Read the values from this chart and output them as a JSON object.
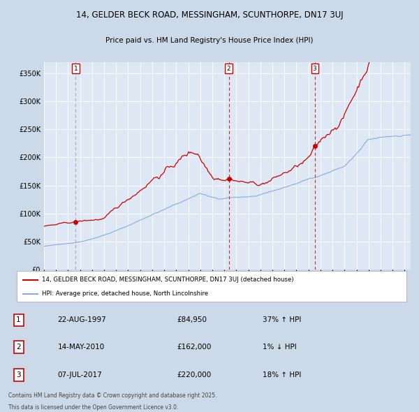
{
  "title1": "14, GELDER BECK ROAD, MESSINGHAM, SCUNTHORPE, DN17 3UJ",
  "title2": "Price paid vs. HM Land Registry's House Price Index (HPI)",
  "ylabel_ticks": [
    "£0",
    "£50K",
    "£100K",
    "£150K",
    "£200K",
    "£250K",
    "£300K",
    "£350K"
  ],
  "ytick_vals": [
    0,
    50000,
    100000,
    150000,
    200000,
    250000,
    300000,
    350000
  ],
  "ylim": [
    0,
    370000
  ],
  "sale1_date": "22-AUG-1997",
  "sale1_price": 84950,
  "sale1_label": "37% ↑ HPI",
  "sale2_date": "14-MAY-2010",
  "sale2_price": 162000,
  "sale2_label": "1% ↓ HPI",
  "sale3_date": "07-JUL-2017",
  "sale3_price": 220000,
  "sale3_label": "18% ↑ HPI",
  "legend1": "14, GELDER BECK ROAD, MESSINGHAM, SCUNTHORPE, DN17 3UJ (detached house)",
  "legend2": "HPI: Average price, detached house, North Lincolnshire",
  "footer1": "Contains HM Land Registry data © Crown copyright and database right 2025.",
  "footer2": "This data is licensed under the Open Government Licence v3.0.",
  "house_color": "#cc0000",
  "hpi_color": "#88aadd",
  "bg_color": "#ccd9e8",
  "plot_bg": "#dde8f4",
  "grid_color": "#ffffff",
  "vline1_color": "#aaaaaa",
  "vline23_color": "#dd2222",
  "marker_color": "#cc0000",
  "label_box_color": "#cc0000",
  "sale1_year": 1997.64,
  "sale2_year": 2010.37,
  "sale3_year": 2017.52
}
